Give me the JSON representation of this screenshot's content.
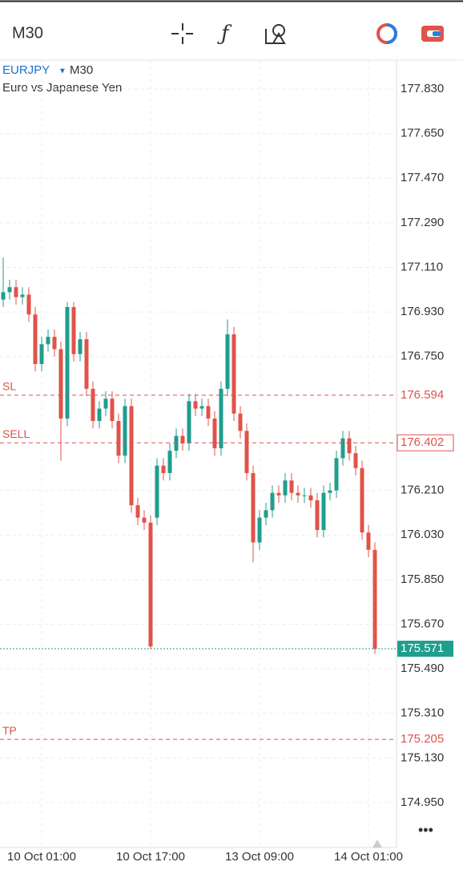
{
  "header": {
    "timeframe": "M30"
  },
  "chart_data": {
    "type": "candlestick",
    "symbol": "EURJPY",
    "timeframe": "M30",
    "description": "Euro vs Japanese Yen",
    "categories": [
      null,
      null,
      null,
      null,
      null,
      null,
      "10 Oct 01:00",
      null,
      null,
      null,
      null,
      null,
      null,
      null,
      null,
      null,
      null,
      null,
      null,
      null,
      null,
      null,
      null,
      "10 Oct 17:00",
      null,
      null,
      null,
      null,
      null,
      null,
      null,
      null,
      null,
      null,
      null,
      null,
      null,
      null,
      null,
      null,
      "13 Oct 09:00",
      null,
      null,
      null,
      null,
      null,
      null,
      null,
      null,
      null,
      null,
      null,
      null,
      null,
      null,
      null,
      null,
      "14 Oct 01:00",
      null
    ],
    "open": [
      176.98,
      177.01,
      177.03,
      176.99,
      177.0,
      176.92,
      176.72,
      176.8,
      176.83,
      176.78,
      176.5,
      176.95,
      176.76,
      176.82,
      176.62,
      176.49,
      176.54,
      176.58,
      176.49,
      176.35,
      176.55,
      176.15,
      176.1,
      176.08,
      176.1,
      176.31,
      176.28,
      176.37,
      176.43,
      176.4,
      176.57,
      176.54,
      176.55,
      176.5,
      176.38,
      176.62,
      176.84,
      176.52,
      176.45,
      176.28,
      176.0,
      176.1,
      176.13,
      176.2,
      176.19,
      176.25,
      176.2,
      176.19,
      176.19,
      176.17,
      176.05,
      176.2,
      176.21,
      176.34,
      176.42,
      176.36,
      176.3,
      176.04,
      175.97
    ],
    "high": [
      177.15,
      177.06,
      177.06,
      177.03,
      177.03,
      176.95,
      176.83,
      176.86,
      176.86,
      176.81,
      176.97,
      176.97,
      176.85,
      176.85,
      176.65,
      176.57,
      176.61,
      176.61,
      176.52,
      176.58,
      176.58,
      176.18,
      176.13,
      176.11,
      176.34,
      176.34,
      176.4,
      176.46,
      176.46,
      176.6,
      176.6,
      176.58,
      176.58,
      176.53,
      176.65,
      176.9,
      176.87,
      176.55,
      176.48,
      176.31,
      176.13,
      176.16,
      176.23,
      176.23,
      176.28,
      176.28,
      176.23,
      176.22,
      176.22,
      176.2,
      176.23,
      176.24,
      176.37,
      176.45,
      176.45,
      176.39,
      176.33,
      176.07,
      176.0
    ],
    "low": [
      176.95,
      176.98,
      176.96,
      176.96,
      176.89,
      176.69,
      176.69,
      176.77,
      176.75,
      176.33,
      176.47,
      176.73,
      176.73,
      176.59,
      176.46,
      176.46,
      176.51,
      176.46,
      176.32,
      176.32,
      176.12,
      176.07,
      176.05,
      175.57,
      176.07,
      176.25,
      176.25,
      176.34,
      176.37,
      176.37,
      176.51,
      176.51,
      176.47,
      176.35,
      176.35,
      176.59,
      176.49,
      176.42,
      176.25,
      175.92,
      175.97,
      176.07,
      176.1,
      176.16,
      176.16,
      176.17,
      176.16,
      176.16,
      176.14,
      176.02,
      176.02,
      176.17,
      176.18,
      176.31,
      176.33,
      176.27,
      176.01,
      175.94,
      175.55
    ],
    "close": [
      177.01,
      177.03,
      176.99,
      177.0,
      176.92,
      176.72,
      176.8,
      176.83,
      176.78,
      176.5,
      176.95,
      176.76,
      176.82,
      176.62,
      176.49,
      176.54,
      176.58,
      176.49,
      176.35,
      176.55,
      176.15,
      176.1,
      176.08,
      175.58,
      176.31,
      176.28,
      176.37,
      176.43,
      176.4,
      176.57,
      176.54,
      176.55,
      176.5,
      176.38,
      176.62,
      176.84,
      176.52,
      176.45,
      176.28,
      176.0,
      176.1,
      176.13,
      176.2,
      176.19,
      176.25,
      176.2,
      176.19,
      176.19,
      176.17,
      176.05,
      176.2,
      176.21,
      176.34,
      176.42,
      176.36,
      176.3,
      176.04,
      175.97,
      175.57
    ],
    "up_color": "#1f9e8e",
    "down_color": "#e0534a",
    "ylim": [
      174.7,
      178.0
    ],
    "yticks": [
      {
        "value": 177.83,
        "label": "177.830"
      },
      {
        "value": 177.65,
        "label": "177.650"
      },
      {
        "value": 177.47,
        "label": "177.470"
      },
      {
        "value": 177.29,
        "label": "177.290"
      },
      {
        "value": 177.11,
        "label": "177.110"
      },
      {
        "value": 176.93,
        "label": "176.930"
      },
      {
        "value": 176.75,
        "label": "176.750"
      },
      {
        "value": 176.21,
        "label": "176.210"
      },
      {
        "value": 176.03,
        "label": "176.030"
      },
      {
        "value": 175.85,
        "label": "175.850"
      },
      {
        "value": 175.67,
        "label": "175.670"
      },
      {
        "value": 175.49,
        "label": "175.490"
      },
      {
        "value": 175.31,
        "label": "175.310"
      },
      {
        "value": 175.13,
        "label": "175.130"
      },
      {
        "value": 174.95,
        "label": "174.950"
      }
    ],
    "grid": true,
    "levels": [
      {
        "name": "SL",
        "value": 176.594,
        "color": "#d9534f"
      },
      {
        "name": "SELL",
        "value": 176.402,
        "color": "#d9534f"
      },
      {
        "value": 175.571,
        "color": "#1f9e8e"
      },
      {
        "name": "TP",
        "value": 175.205,
        "color": "#d9534f"
      }
    ]
  }
}
